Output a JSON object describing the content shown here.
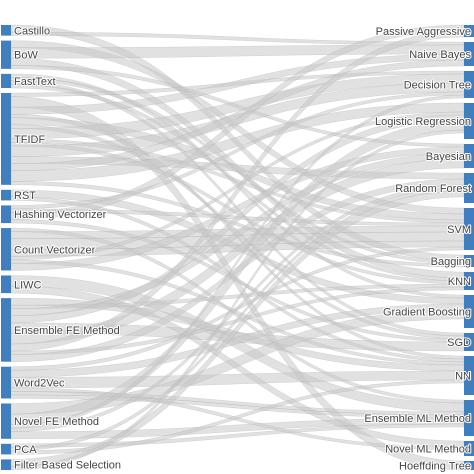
{
  "chart_data": {
    "type": "sankey",
    "node_color": "#3f7fc0",
    "link_color": "#c8c8c8",
    "sources": [
      {
        "label": "Castillo",
        "value": 3
      },
      {
        "label": "BoW",
        "value": 8
      },
      {
        "label": "FastText",
        "value": 4
      },
      {
        "label": "TFIDF",
        "value": 26
      },
      {
        "label": "RST",
        "value": 3
      },
      {
        "label": "Hashing Vectorizer",
        "value": 5
      },
      {
        "label": "Count Vectorizer",
        "value": 12
      },
      {
        "label": "LIWC",
        "value": 5
      },
      {
        "label": "Ensemble FE Method",
        "value": 18
      },
      {
        "label": "Word2Vec",
        "value": 9
      },
      {
        "label": "Novel FE Method",
        "value": 10
      },
      {
        "label": "PCA",
        "value": 3
      },
      {
        "label": "Filter Based Selection",
        "value": 3
      }
    ],
    "targets": [
      {
        "label": "Passive Aggressive",
        "value": 4
      },
      {
        "label": "Naive Bayes",
        "value": 8
      },
      {
        "label": "Decision Tree",
        "value": 9
      },
      {
        "label": "Logistic Regression",
        "value": 12
      },
      {
        "label": "Bayesian",
        "value": 8
      },
      {
        "label": "Random Forest",
        "value": 10
      },
      {
        "label": "SVM",
        "value": 14
      },
      {
        "label": "Bagging",
        "value": 4
      },
      {
        "label": "KNN",
        "value": 6
      },
      {
        "label": "Gradient Boosting",
        "value": 11
      },
      {
        "label": "SGD",
        "value": 6
      },
      {
        "label": "NN",
        "value": 13
      },
      {
        "label": "Ensemble ML Method",
        "value": 12
      },
      {
        "label": "Novel ML Method",
        "value": 5
      },
      {
        "label": "Hoeffding Tree",
        "value": 3
      }
    ]
  }
}
